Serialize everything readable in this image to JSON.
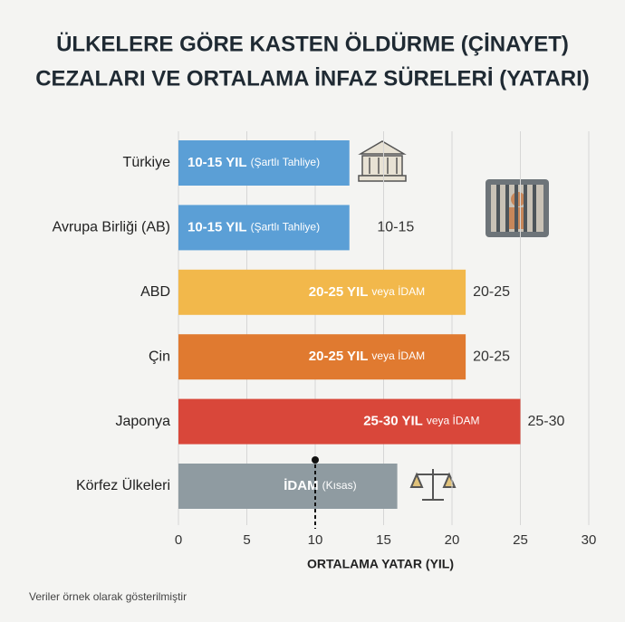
{
  "chart_data": {
    "type": "bar",
    "orientation": "horizontal",
    "title": [
      "ÜLKELERE GÖRE KASTEN ÖLDÜRME (ÇİNAYET)",
      "CEZALARI VE ORTALAMA İNFAZ SÜRELERİ (YATARI)"
    ],
    "categories": [
      "Türkiye",
      "Avrupa Birliği (AB)",
      "ABD",
      "Çin",
      "Japonya",
      "Körfez Ülkeleri"
    ],
    "values": [
      12.5,
      12.5,
      21,
      21,
      25,
      16
    ],
    "colors": [
      "#5b9fd6",
      "#5b9fd6",
      "#f2b84b",
      "#e07a30",
      "#d9473a",
      "#8f9ba1"
    ],
    "bar_labels_main": [
      "10-15 YIL",
      "10-15 YIL",
      "20-25 YIL",
      "20-25 YIL",
      "25-30 YIL",
      "İDAM"
    ],
    "bar_labels_sub": [
      "(Şartlı Tahliye)",
      "(Şartlı Tahliye)",
      "veya İDAM",
      "veya İDAM",
      "veya İDAM",
      "(Kısas)"
    ],
    "range_labels": [
      null,
      "10-15",
      "20-25",
      "20-25",
      "25-30",
      null
    ],
    "markers": [
      null,
      null,
      null,
      null,
      null,
      10
    ],
    "xlim": [
      0,
      30
    ],
    "xticks": [
      0,
      5,
      10,
      15,
      20,
      25,
      30
    ],
    "xlabel": "ORTALAMA YATAR (YIL)",
    "grid": true,
    "footnote": "Veriler örnek olarak gösterilmiştir"
  }
}
